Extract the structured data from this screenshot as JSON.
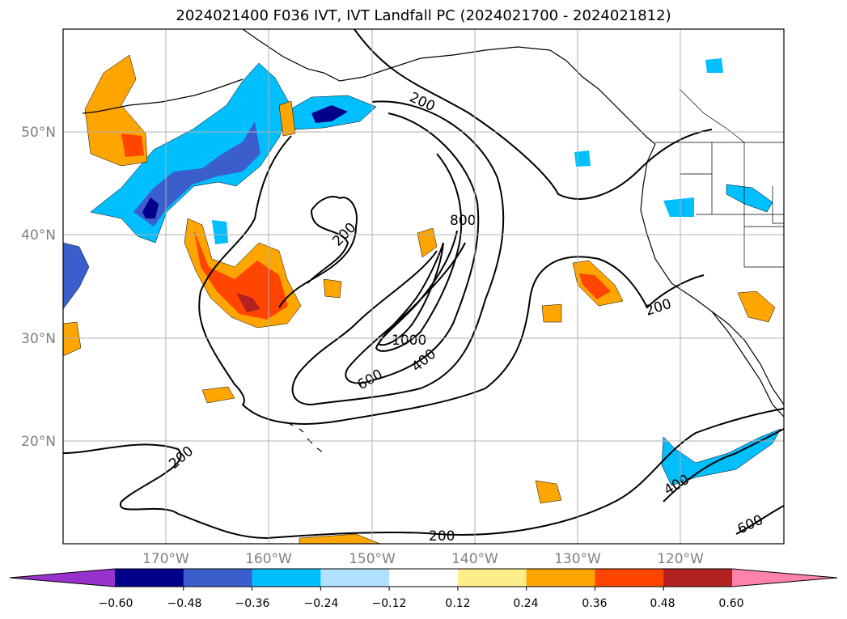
{
  "title": "2024021400 F036 IVT, IVT Landfall PC (2024021700 - 2024021812)",
  "colors": {
    "land_line": "#000000",
    "grid": "#b0b0b0",
    "axis_text": "#808080"
  },
  "lat_labels": [
    "50°N",
    "40°N",
    "30°N",
    "20°N"
  ],
  "lon_labels": [
    "170°W",
    "160°W",
    "150°W",
    "140°W",
    "130°W",
    "120°W"
  ],
  "contour_labels": [
    "200",
    "200",
    "800",
    "1000",
    "400",
    "600",
    "200",
    "200",
    "400",
    "600",
    "200"
  ],
  "colorbar": {
    "colors": [
      "#9932cc",
      "#00008b",
      "#3a5fcd",
      "#00bfff",
      "#b0e2ff",
      "#ffffff",
      "#ffec8b",
      "#ffa500",
      "#ff4500",
      "#b22222",
      "#ff82ab"
    ],
    "tick_labels": [
      "−0.60",
      "−0.48",
      "−0.36",
      "−0.24",
      "−0.12",
      "0.12",
      "0.24",
      "0.36",
      "0.48",
      "0.60"
    ]
  }
}
